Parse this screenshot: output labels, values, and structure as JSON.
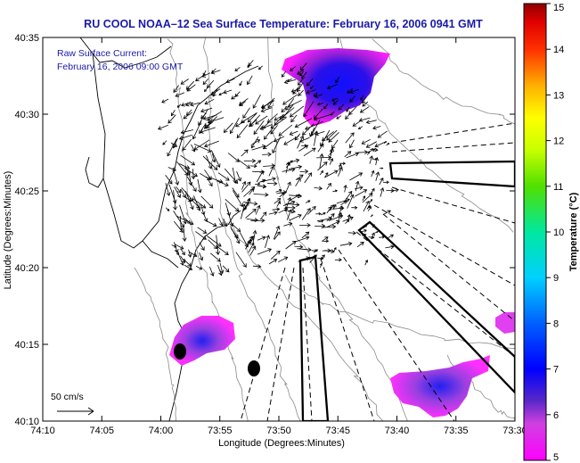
{
  "chart_data": {
    "type": "map",
    "title": "RU COOL  NOAA–12  Sea Surface Temperature:  February 16, 2006 0941 GMT",
    "annotations": {
      "raw_current_label": "Raw Surface Current:",
      "raw_current_time": "February 16, 2006 09:00 GMT",
      "scale_label": "50 cm/s"
    },
    "xlabel": "Longitude (Degrees:Minutes)",
    "ylabel": "Latitude (Degrees:Minutes)",
    "x_ticks": [
      "74:10",
      "74:05",
      "74:00",
      "73:55",
      "73:50",
      "73:45",
      "73:40",
      "73:35",
      "73:30"
    ],
    "y_ticks": [
      "40:35",
      "40:30",
      "40:25",
      "40:20",
      "40:15",
      "40:10"
    ],
    "xlim_minutes_west": [
      70,
      30
    ],
    "ylim_minutes_north": [
      10,
      35
    ],
    "colorbar": {
      "label": "Temperature (°C)",
      "range": [
        5,
        15
      ],
      "ticks": [
        "5",
        "6",
        "7",
        "8",
        "9",
        "10",
        "11",
        "12",
        "13",
        "14",
        "15"
      ]
    },
    "sst_patches_celsius_approx": [
      {
        "region": "north, near 40:31-40:34N",
        "min": 5,
        "max": 6.5
      },
      {
        "region": "southwest, near 40:15N 73:59W",
        "min": 5,
        "max": 6.5
      },
      {
        "region": "southeast, near 40:11N 73:36W",
        "min": 5,
        "max": 6.5
      },
      {
        "region": "east edge, near 40:16N 73:30W",
        "min": 5,
        "max": 5.5
      }
    ]
  }
}
